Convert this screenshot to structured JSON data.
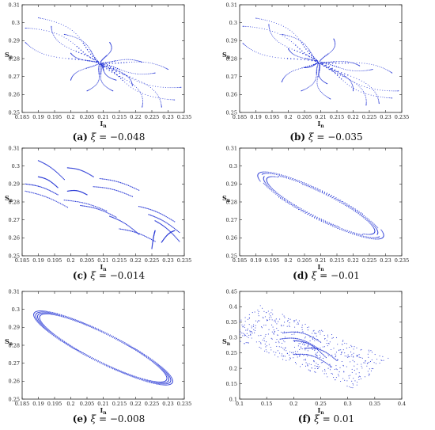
{
  "chart_data": [
    {
      "type": "scatter",
      "caption_tag": "(a)",
      "caption_xi": "ξ",
      "caption_value": "= −0.048",
      "xlabel": "I_n",
      "ylabel": "S_n",
      "xlim": [
        0.185,
        0.235
      ],
      "ylim": [
        0.25,
        0.31
      ],
      "xticks": [
        "0.185",
        "0.19",
        "0.195",
        "0.2",
        "0.205",
        "0.21",
        "0.215",
        "0.22",
        "0.225",
        "0.23",
        "0.235"
      ],
      "yticks": [
        "0.25",
        "0.26",
        "0.27",
        "0.28",
        "0.29",
        "0.3",
        "0.31"
      ],
      "pattern": "node",
      "center": [
        0.209,
        0.2775
      ],
      "starts": [
        [
          0.186,
          0.297
        ],
        [
          0.186,
          0.289
        ],
        [
          0.19,
          0.3027
        ],
        [
          0.194,
          0.298
        ],
        [
          0.198,
          0.2935
        ],
        [
          0.2,
          0.283
        ],
        [
          0.212,
          0.289
        ],
        [
          0.21,
          0.275
        ],
        [
          0.2,
          0.268
        ],
        [
          0.205,
          0.262
        ],
        [
          0.213,
          0.262
        ],
        [
          0.219,
          0.265
        ],
        [
          0.226,
          0.272
        ],
        [
          0.23,
          0.274
        ],
        [
          0.234,
          0.264
        ],
        [
          0.228,
          0.253
        ],
        [
          0.232,
          0.257
        ],
        [
          0.222,
          0.253
        ],
        [
          0.214,
          0.268
        ],
        [
          0.222,
          0.278
        ]
      ]
    },
    {
      "type": "scatter",
      "caption_tag": "(b)",
      "caption_xi": "ξ",
      "caption_value": "= −0.035",
      "xlabel": "I_n",
      "ylabel": "S_n",
      "xlim": [
        0.185,
        0.235
      ],
      "ylim": [
        0.25,
        0.31
      ],
      "xticks": [
        "0.185",
        "0.19",
        "0.195",
        "0.2",
        "0.205",
        "0.21",
        "0.215",
        "0.22",
        "0.225",
        "0.23",
        "0.235"
      ],
      "yticks": [
        "0.25",
        "0.26",
        "0.27",
        "0.28",
        "0.29",
        "0.3",
        "0.31"
      ],
      "pattern": "node",
      "center": [
        0.2095,
        0.278
      ],
      "starts": [
        [
          0.186,
          0.298
        ],
        [
          0.186,
          0.2885
        ],
        [
          0.19,
          0.3025
        ],
        [
          0.194,
          0.299
        ],
        [
          0.198,
          0.2935
        ],
        [
          0.2,
          0.2855
        ],
        [
          0.214,
          0.291
        ],
        [
          0.205,
          0.275
        ],
        [
          0.198,
          0.267
        ],
        [
          0.204,
          0.262
        ],
        [
          0.213,
          0.2575
        ],
        [
          0.22,
          0.262
        ],
        [
          0.226,
          0.274
        ],
        [
          0.232,
          0.272
        ],
        [
          0.234,
          0.262
        ],
        [
          0.228,
          0.255
        ],
        [
          0.232,
          0.258
        ],
        [
          0.224,
          0.254
        ],
        [
          0.212,
          0.266
        ],
        [
          0.222,
          0.276
        ]
      ]
    },
    {
      "type": "scatter",
      "caption_tag": "(c)",
      "caption_xi": "ξ",
      "caption_value": "= −0.014",
      "xlabel": "I_n",
      "ylabel": "S_n",
      "xlim": [
        0.185,
        0.235
      ],
      "ylim": [
        0.25,
        0.31
      ],
      "xticks": [
        "0.185",
        "0.19",
        "0.195",
        "0.2",
        "0.205",
        "0.21",
        "0.215",
        "0.22",
        "0.225",
        "0.23",
        "0.235"
      ],
      "yticks": [
        "0.25",
        "0.26",
        "0.27",
        "0.28",
        "0.29",
        "0.3",
        "0.31"
      ],
      "pattern": "spiral",
      "arcs": [
        [
          0.19,
          0.294,
          0.196,
          0.288
        ],
        [
          0.19,
          0.303,
          0.198,
          0.2925
        ],
        [
          0.199,
          0.299,
          0.207,
          0.294
        ],
        [
          0.186,
          0.286,
          0.199,
          0.277
        ],
        [
          0.186,
          0.29,
          0.196,
          0.284
        ],
        [
          0.199,
          0.286,
          0.205,
          0.284
        ],
        [
          0.209,
          0.293,
          0.221,
          0.2865
        ],
        [
          0.207,
          0.2885,
          0.219,
          0.283
        ],
        [
          0.198,
          0.281,
          0.211,
          0.275
        ],
        [
          0.203,
          0.278,
          0.214,
          0.2715
        ],
        [
          0.212,
          0.272,
          0.221,
          0.262
        ],
        [
          0.215,
          0.265,
          0.226,
          0.258
        ],
        [
          0.221,
          0.2775,
          0.232,
          0.269
        ],
        [
          0.224,
          0.273,
          0.2335,
          0.263
        ],
        [
          0.226,
          0.2695,
          0.2335,
          0.258
        ],
        [
          0.228,
          0.2575,
          0.232,
          0.264
        ],
        [
          0.225,
          0.254,
          0.226,
          0.264
        ]
      ]
    },
    {
      "type": "scatter",
      "caption_tag": "(d)",
      "caption_xi": "ξ",
      "caption_value": "= −0.01",
      "xlabel": "I_n",
      "ylabel": "S_n",
      "xlim": [
        0.185,
        0.235
      ],
      "ylim": [
        0.25,
        0.31
      ],
      "xticks": [
        "0.185",
        "0.19",
        "0.195",
        "0.2",
        "0.205",
        "0.21",
        "0.215",
        "0.22",
        "0.225",
        "0.23",
        "0.235"
      ],
      "yticks": [
        "0.25",
        "0.26",
        "0.27",
        "0.28",
        "0.29",
        "0.3",
        "0.31"
      ],
      "pattern": "ellipse-arcs",
      "center": [
        0.21,
        0.278
      ],
      "rings": [
        0.0228,
        0.0218,
        0.0207,
        0.0196
      ]
    },
    {
      "type": "scatter",
      "caption_tag": "(e)",
      "caption_xi": "ξ",
      "caption_value": "= −0.008",
      "xlabel": "I_n",
      "ylabel": "S_n",
      "xlim": [
        0.185,
        0.235
      ],
      "ylim": [
        0.25,
        0.31
      ],
      "xticks": [
        "0.185",
        "0.19",
        "0.195",
        "0.2",
        "0.205",
        "0.21",
        "0.215",
        "0.22",
        "0.225",
        "0.23",
        "0.235"
      ],
      "yticks": [
        "0.25",
        "0.26",
        "0.27",
        "0.28",
        "0.29",
        "0.3",
        "0.31"
      ],
      "pattern": "ellipse",
      "center": [
        0.21,
        0.2785
      ],
      "rings": [
        0.0252,
        0.0245,
        0.0238,
        0.0231
      ]
    },
    {
      "type": "scatter",
      "caption_tag": "(f)",
      "caption_xi": "ξ",
      "caption_value": "= 0.01",
      "xlabel": "I_n",
      "ylabel": "S_n",
      "xlim": [
        0.1,
        0.4
      ],
      "ylim": [
        0.1,
        0.45
      ],
      "xticks": [
        "0.1",
        "0.15",
        "0.2",
        "0.25",
        "0.3",
        "0.35",
        "0.4"
      ],
      "yticks": [
        "0.1",
        "0.15",
        "0.2",
        "0.25",
        "0.3",
        "0.35",
        "0.4",
        "0.45"
      ],
      "pattern": "chaotic",
      "center": [
        0.225,
        0.27
      ]
    }
  ],
  "colors": {
    "series": "#2b3bd6",
    "axis": "#222222"
  }
}
